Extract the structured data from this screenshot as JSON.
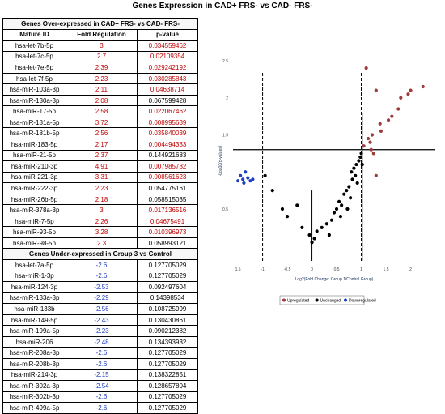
{
  "figure_title": "Genes Expression in CAD+ FRS- vs CAD- FRS-",
  "table": {
    "section_over": "Genes Over-expressed in CAD+ FRS- vs CAD- FRS-",
    "headers": [
      "Mature ID",
      "Fold Regulation",
      "p-value"
    ],
    "over_rows": [
      [
        "hsa-let-7b-5p",
        "3",
        "0.034559462"
      ],
      [
        "hsa-let-7c-5p",
        "2.7",
        "0.02109354"
      ],
      [
        "hsa-let-7e-5p",
        "2.39",
        "0.029242192"
      ],
      [
        "hsa-let-7f-5p",
        "2.23",
        "0.030285843"
      ],
      [
        "hsa-miR-103a-3p",
        "2.11",
        "0.04638714"
      ],
      [
        "hsa-miR-130a-3p",
        "2.08",
        "0.067599428"
      ],
      [
        "hsa-miR-17-5p",
        "2.58",
        "0.022067462"
      ],
      [
        "hsa-miR-181a-5p",
        "3.72",
        "0.008995639"
      ],
      [
        "hsa-miR-181b-5p",
        "2.56",
        "0.035840039"
      ],
      [
        "hsa-miR-183-5p",
        "2.17",
        "0.004494333"
      ],
      [
        "hsa-miR-21-5p",
        "2.37",
        "0.144921683"
      ],
      [
        "hsa-miR-210-3p",
        "4.91",
        "0.007985782"
      ],
      [
        "hsa-miR-221-3p",
        "3.31",
        "0.008561623"
      ],
      [
        "hsa-miR-222-3p",
        "2.23",
        "0.054775161"
      ],
      [
        "hsa-miR-26b-5p",
        "2.18",
        "0.058515035"
      ],
      [
        "hsa-miR-378a-3p",
        "3",
        "0.017136516"
      ],
      [
        "hsa-miR-7-5p",
        "2.26",
        "0.04675491"
      ],
      [
        "hsa-miR-93-5p",
        "3.28",
        "0.010396973"
      ],
      [
        "hsa-miR-98-5p",
        "2.3",
        "0.058993121"
      ]
    ],
    "section_under": "Genes Under-expressed in Group 3 vs Control",
    "under_rows": [
      [
        "hsa-let-7a-5p",
        "-2.6",
        "0.127705029"
      ],
      [
        "hsa-miR-1-3p",
        "-2.6",
        "0.127705029"
      ],
      [
        "hsa-miR-124-3p",
        "-2.53",
        "0.092497604"
      ],
      [
        "hsa-miR-133a-3p",
        "-2.29",
        "0.14398534"
      ],
      [
        "hsa-miR-133b",
        "-2.56",
        "0.108725999"
      ],
      [
        "hsa-miR-149-5p",
        "-2.43",
        "0.130430861"
      ],
      [
        "hsa-miR-199a-5p",
        "-2.23",
        "0.090212382"
      ],
      [
        "hsa-miR-206",
        "-2.48",
        "0.134393932"
      ],
      [
        "hsa-miR-208a-3p",
        "-2.6",
        "0.127705029"
      ],
      [
        "hsa-miR-208b-3p",
        "-2.6",
        "0.127705029"
      ],
      [
        "hsa-miR-214-3p",
        "-2.15",
        "0.138322851"
      ],
      [
        "hsa-miR-302a-3p",
        "-2.54",
        "0.128657804"
      ],
      [
        "hsa-miR-302b-3p",
        "-2.6",
        "0.127705029"
      ],
      [
        "hsa-miR-499a-5p",
        "-2.6",
        "0.127705029"
      ]
    ]
  },
  "chart_data": {
    "type": "scatter",
    "title": "",
    "xlabel": "Log2(Fold Change: Group 1/Control Group)",
    "ylabel": "-Log10(p-values)",
    "xlim": [
      -1.6,
      2.5
    ],
    "ylim": [
      -0.2,
      2.5
    ],
    "x_ticks": [
      "1.5",
      "-1",
      "-0.5",
      "0",
      "0.5",
      "1",
      "1.5",
      "2"
    ],
    "y_ticks": [
      "0.5",
      "1",
      "1.5",
      "2",
      "2.5"
    ],
    "threshold_y": 1.3,
    "fold_lines_x": [
      -1,
      1
    ],
    "series": [
      {
        "name": "Upregulated",
        "color": "#9e3b3b",
        "points": [
          [
            1.1,
            2.4
          ],
          [
            1.3,
            2.1
          ],
          [
            1.38,
            1.65
          ],
          [
            1.4,
            1.55
          ],
          [
            1.22,
            1.5
          ],
          [
            1.14,
            1.45
          ],
          [
            1.18,
            1.4
          ],
          [
            1.55,
            1.7
          ],
          [
            1.62,
            1.75
          ],
          [
            1.75,
            1.85
          ],
          [
            1.8,
            2.0
          ],
          [
            1.95,
            2.05
          ],
          [
            2.0,
            2.1
          ],
          [
            2.25,
            2.15
          ],
          [
            1.2,
            1.3
          ],
          [
            1.25,
            1.25
          ],
          [
            1.3,
            0.95
          ],
          [
            1.05,
            1.35
          ]
        ]
      },
      {
        "name": "Unchanged",
        "color": "#000000",
        "points": [
          [
            -0.95,
            0.95
          ],
          [
            -0.8,
            0.75
          ],
          [
            -0.6,
            0.5
          ],
          [
            -0.5,
            0.4
          ],
          [
            -0.2,
            0.25
          ],
          [
            -0.05,
            0.15
          ],
          [
            0.0,
            0.05
          ],
          [
            0.05,
            0.1
          ],
          [
            0.1,
            0.2
          ],
          [
            0.2,
            0.25
          ],
          [
            0.3,
            0.3
          ],
          [
            0.4,
            0.35
          ],
          [
            0.45,
            0.45
          ],
          [
            0.5,
            0.5
          ],
          [
            0.55,
            0.6
          ],
          [
            0.6,
            0.55
          ],
          [
            0.65,
            0.7
          ],
          [
            0.7,
            0.75
          ],
          [
            0.75,
            0.8
          ],
          [
            0.78,
            0.65
          ],
          [
            0.82,
            0.9
          ],
          [
            0.85,
            1.05
          ],
          [
            0.88,
            0.95
          ],
          [
            0.9,
            1.1
          ],
          [
            0.92,
            0.85
          ],
          [
            0.95,
            1.15
          ],
          [
            0.98,
            1.2
          ],
          [
            1.0,
            1.25
          ],
          [
            1.02,
            1.1
          ],
          [
            -0.3,
            0.55
          ],
          [
            0.35,
            0.15
          ],
          [
            0.58,
            0.4
          ],
          [
            0.72,
            0.5
          ],
          [
            0.8,
            1.0
          ]
        ]
      },
      {
        "name": "Downregulated",
        "color": "#1f3fbf",
        "points": [
          [
            -1.45,
            0.95
          ],
          [
            -1.4,
            0.9
          ],
          [
            -1.35,
            1.0
          ],
          [
            -1.3,
            0.92
          ],
          [
            -1.25,
            0.88
          ],
          [
            -1.2,
            0.9
          ],
          [
            -1.5,
            0.88
          ],
          [
            -1.38,
            0.85
          ]
        ]
      }
    ],
    "legend_position": "bottom"
  }
}
